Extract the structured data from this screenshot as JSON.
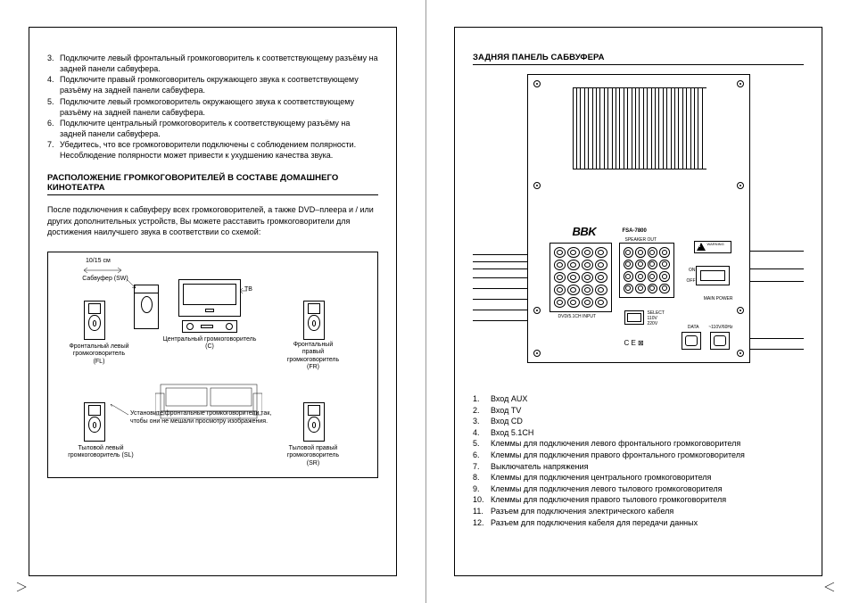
{
  "left": {
    "steps": [
      {
        "n": "3.",
        "t": "Подключите левый фронтальный громкоговоритель к соответствующему разъёму на задней панели сабвуфера."
      },
      {
        "n": "4.",
        "t": "Подключите правый громкоговоритель окружающего звука к соответствующему разъёму на задней панели сабвуфера."
      },
      {
        "n": "5.",
        "t": "Подключите левый громкоговоритель окружающего звука к соответствующему разъёму на задней панели сабвуфера."
      },
      {
        "n": "6.",
        "t": "Подключите центральный громкоговоритель к соответствующему разъёму на задней панели сабвуфера."
      },
      {
        "n": "7.",
        "t": "Убедитесь, что все громкоговорители подключены с соблюдением полярности. Несоблюдение полярности может привести к ухудшению качества звука."
      }
    ],
    "section_title": "РАСПОЛОЖЕНИЕ ГРОМКОГОВОРИТЕЛЕЙ В СОСТАВЕ ДОМАШНЕГО КИНОТЕАТРА",
    "intro": "После подключения к сабвуферу всех громкоговорителей, а также DVD–плеера и / или других дополнительных устройств, Вы можете расставить громкоговорители для достижения наилучшего звука в соответствии со схемой:",
    "diagram": {
      "dist": "10/15 см",
      "sw": "Сабвуфер (SW)",
      "tv": "ТВ",
      "center": "Центральный громкоговоритель (C)",
      "fl": "Фронтальный левый громкоговоритель (FL)",
      "fr": "Фронтальный правый громкоговоритель (FR)",
      "note": "Установите фронтальные громкоговорители так, чтобы они не мешали просмотру изображения.",
      "sl": "Тыловой левый громкоговоритель (SL)",
      "sr": "Тыловой правый громкоговоритель (SR)"
    }
  },
  "right": {
    "title": "ЗАДНЯЯ ПАНЕЛЬ САБВУФЕРА",
    "panel": {
      "brand": "BBK",
      "model": "FSA-7800",
      "ce": "C E ⊠",
      "mainpower": "MAIN POWER",
      "warn": "WARNING"
    },
    "legend": [
      {
        "n": "1.",
        "t": "Вход AUX"
      },
      {
        "n": "2.",
        "t": "Вход TV"
      },
      {
        "n": "3.",
        "t": "Вход CD"
      },
      {
        "n": "4.",
        "t": "Вход 5.1CH"
      },
      {
        "n": "5.",
        "t": "Клеммы для подключения левого фронтального громкоговорителя"
      },
      {
        "n": "6.",
        "t": "Клеммы для подключения правого фронтального громкоговорителя"
      },
      {
        "n": "7.",
        "t": "Выключатель напряжения"
      },
      {
        "n": "8.",
        "t": "Клеммы для подключения центрального громкоговорителя"
      },
      {
        "n": "9.",
        "t": "Клеммы для подключения левого тылового громкоговорителя"
      },
      {
        "n": "10.",
        "t": "Клеммы для подключения правого тылового громкоговорителя"
      },
      {
        "n": "11.",
        "t": "Разъем для подключения электрического кабеля"
      },
      {
        "n": "12.",
        "t": "Разъем для подключения кабеля для передачи данных"
      }
    ]
  }
}
